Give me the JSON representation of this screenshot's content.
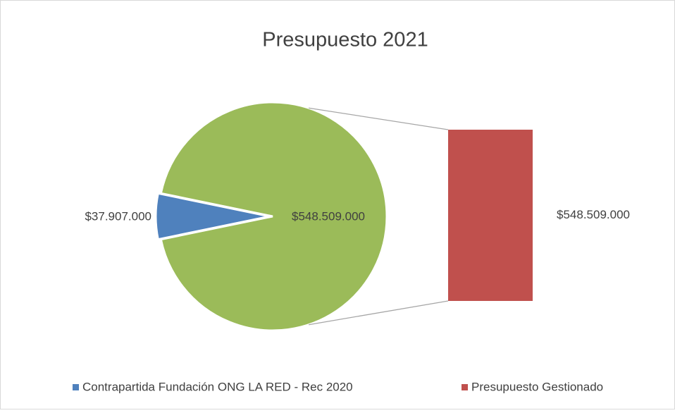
{
  "chart_data": {
    "type": "bar-of-pie",
    "title": "Presupuesto 2021",
    "series": [
      {
        "name": "Contrapartida Fundación ONG LA RED - Rec 2020",
        "color": "#4f81bd",
        "values": [
          37907000
        ],
        "value_labels": [
          "$37.907.000"
        ]
      },
      {
        "name": "Presupuesto Gestionado",
        "color": "#c0504d",
        "values": [
          548509000
        ],
        "value_labels": [
          "$548.509.000"
        ]
      }
    ],
    "other": {
      "color": "#9bbb59",
      "value": 548509000,
      "value_label": "$548.509.000"
    }
  }
}
